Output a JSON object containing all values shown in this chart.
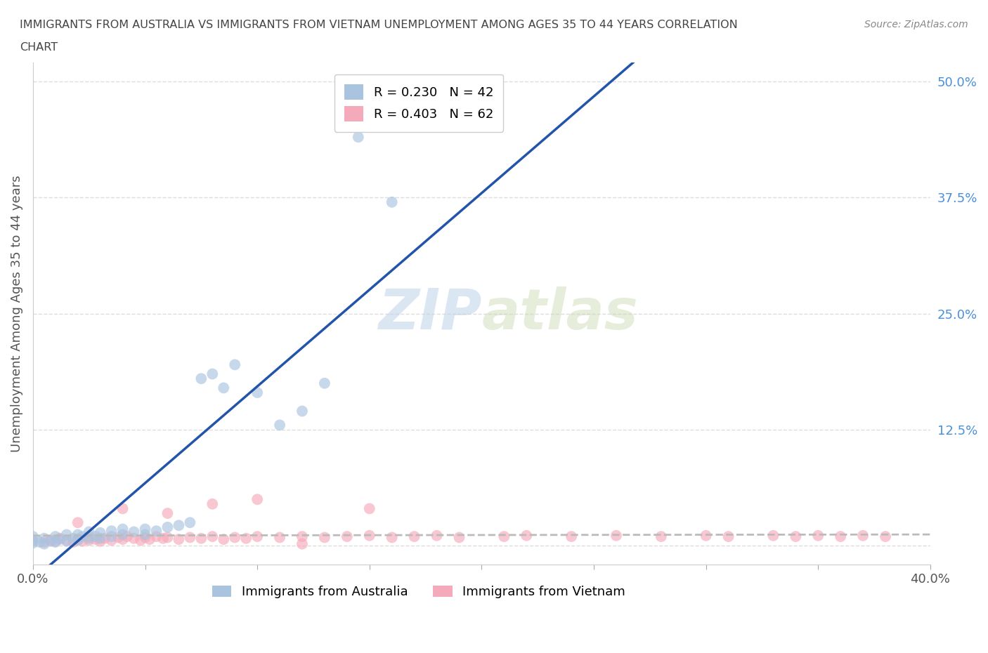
{
  "title_line1": "IMMIGRANTS FROM AUSTRALIA VS IMMIGRANTS FROM VIETNAM UNEMPLOYMENT AMONG AGES 35 TO 44 YEARS CORRELATION",
  "title_line2": "CHART",
  "source": "Source: ZipAtlas.com",
  "ylabel": "Unemployment Among Ages 35 to 44 years",
  "xlim": [
    0.0,
    0.4
  ],
  "ylim": [
    -0.02,
    0.52
  ],
  "xticks": [
    0.0,
    0.05,
    0.1,
    0.15,
    0.2,
    0.25,
    0.3,
    0.35,
    0.4
  ],
  "yticks_right": [
    0.0,
    0.125,
    0.25,
    0.375,
    0.5
  ],
  "ytick_labels_right": [
    "",
    "12.5%",
    "25.0%",
    "37.5%",
    "50.0%"
  ],
  "watermark_zip": "ZIP",
  "watermark_atlas": "atlas",
  "series_aus_label": "Immigrants from Australia",
  "series_viet_label": "Immigrants from Vietnam",
  "aus_R": 0.23,
  "aus_N": 42,
  "viet_R": 0.403,
  "viet_N": 62,
  "aus_color": "#aac4e0",
  "viet_color": "#f5aabb",
  "aus_trend_color": "#2255aa",
  "viet_trend_color": "#bbbbbb",
  "australia_x": [
    0.0,
    0.0,
    0.0,
    0.003,
    0.005,
    0.005,
    0.008,
    0.01,
    0.01,
    0.012,
    0.015,
    0.015,
    0.018,
    0.02,
    0.02,
    0.022,
    0.025,
    0.025,
    0.028,
    0.03,
    0.03,
    0.035,
    0.035,
    0.04,
    0.04,
    0.045,
    0.05,
    0.05,
    0.055,
    0.06,
    0.065,
    0.07,
    0.075,
    0.08,
    0.085,
    0.09,
    0.1,
    0.11,
    0.12,
    0.13,
    0.145,
    0.16
  ],
  "australia_y": [
    0.003,
    0.006,
    0.01,
    0.004,
    0.002,
    0.008,
    0.005,
    0.004,
    0.01,
    0.007,
    0.005,
    0.012,
    0.008,
    0.006,
    0.012,
    0.01,
    0.008,
    0.015,
    0.01,
    0.008,
    0.014,
    0.01,
    0.016,
    0.012,
    0.018,
    0.015,
    0.012,
    0.018,
    0.016,
    0.02,
    0.022,
    0.025,
    0.18,
    0.185,
    0.17,
    0.195,
    0.165,
    0.13,
    0.145,
    0.175,
    0.44,
    0.37
  ],
  "vietnam_x": [
    0.0,
    0.005,
    0.008,
    0.01,
    0.012,
    0.015,
    0.018,
    0.02,
    0.022,
    0.025,
    0.025,
    0.028,
    0.03,
    0.032,
    0.035,
    0.038,
    0.04,
    0.042,
    0.045,
    0.048,
    0.05,
    0.052,
    0.055,
    0.058,
    0.06,
    0.065,
    0.07,
    0.075,
    0.08,
    0.085,
    0.09,
    0.095,
    0.1,
    0.11,
    0.12,
    0.13,
    0.14,
    0.15,
    0.16,
    0.17,
    0.18,
    0.19,
    0.21,
    0.22,
    0.24,
    0.26,
    0.28,
    0.3,
    0.31,
    0.33,
    0.34,
    0.35,
    0.36,
    0.37,
    0.38,
    0.02,
    0.04,
    0.06,
    0.08,
    0.1,
    0.15,
    0.12
  ],
  "vietnam_y": [
    0.005,
    0.004,
    0.006,
    0.005,
    0.008,
    0.006,
    0.004,
    0.007,
    0.005,
    0.006,
    0.01,
    0.007,
    0.005,
    0.008,
    0.006,
    0.009,
    0.007,
    0.01,
    0.008,
    0.006,
    0.009,
    0.007,
    0.01,
    0.008,
    0.009,
    0.007,
    0.009,
    0.008,
    0.01,
    0.007,
    0.009,
    0.008,
    0.01,
    0.009,
    0.01,
    0.009,
    0.01,
    0.011,
    0.009,
    0.01,
    0.011,
    0.009,
    0.01,
    0.011,
    0.01,
    0.011,
    0.01,
    0.011,
    0.01,
    0.011,
    0.01,
    0.011,
    0.01,
    0.011,
    0.01,
    0.025,
    0.04,
    0.035,
    0.045,
    0.05,
    0.04,
    0.002
  ]
}
